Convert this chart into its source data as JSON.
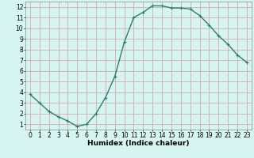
{
  "x": [
    0,
    1,
    2,
    3,
    4,
    5,
    6,
    7,
    8,
    9,
    10,
    11,
    12,
    13,
    14,
    15,
    16,
    17,
    18,
    19,
    20,
    21,
    22,
    23
  ],
  "y": [
    3.8,
    3.0,
    2.2,
    1.7,
    1.3,
    0.8,
    1.0,
    2.0,
    3.5,
    5.5,
    8.7,
    11.0,
    11.5,
    12.1,
    12.1,
    11.9,
    11.9,
    11.8,
    11.2,
    10.3,
    9.3,
    8.5,
    7.5,
    6.8
  ],
  "line_color": "#2e7d6e",
  "marker": "+",
  "marker_size": 3.5,
  "line_width": 1.0,
  "bg_color": "#d6f5f0",
  "grid_color": "#b8d8d4",
  "xlabel": "Humidex (Indice chaleur)",
  "xlabel_fontsize": 6.5,
  "xlabel_weight": "bold",
  "ylim": [
    0.5,
    12.5
  ],
  "xlim": [
    -0.5,
    23.5
  ],
  "yticks": [
    1,
    2,
    3,
    4,
    5,
    6,
    7,
    8,
    9,
    10,
    11,
    12
  ],
  "xticks": [
    0,
    1,
    2,
    3,
    4,
    5,
    6,
    7,
    8,
    9,
    10,
    11,
    12,
    13,
    14,
    15,
    16,
    17,
    18,
    19,
    20,
    21,
    22,
    23
  ],
  "tick_fontsize": 5.5,
  "spine_color": "#888888"
}
